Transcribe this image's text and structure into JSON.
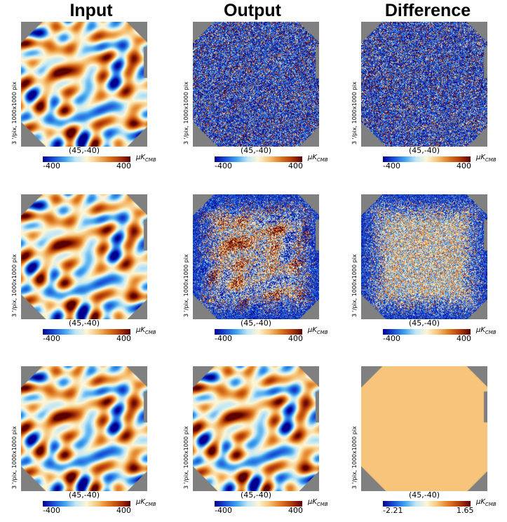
{
  "columns": [
    "Input",
    "Output",
    "Difference"
  ],
  "projection_label": "3 '/pix,   1000x1000 pix",
  "center_label": "(45,-40)",
  "unit": {
    "base": "μK",
    "sub": "CMB"
  },
  "colormap": [
    "#00008f",
    "#1a4fd6",
    "#3fa3ee",
    "#bfe7f7",
    "#fdf6d6",
    "#f6c276",
    "#e07b20",
    "#b23b0c",
    "#5a0000"
  ],
  "masked_color": "#808080",
  "panels": [
    {
      "row": 0,
      "col": 0,
      "texture": "smooth",
      "cmin": "-400",
      "cmax": "400"
    },
    {
      "row": 0,
      "col": 1,
      "texture": "noisy",
      "cmin": "-400",
      "cmax": "400"
    },
    {
      "row": 0,
      "col": 2,
      "texture": "noisy",
      "cmin": "-400",
      "cmax": "400"
    },
    {
      "row": 1,
      "col": 0,
      "texture": "smooth",
      "cmin": "-400",
      "cmax": "400"
    },
    {
      "row": 1,
      "col": 1,
      "texture": "mixed",
      "cmin": "-400",
      "cmax": "400"
    },
    {
      "row": 1,
      "col": 2,
      "texture": "noisy-light",
      "cmin": "-400",
      "cmax": "400"
    },
    {
      "row": 2,
      "col": 0,
      "texture": "smooth",
      "cmin": "-400",
      "cmax": "400"
    },
    {
      "row": 2,
      "col": 1,
      "texture": "smooth",
      "cmin": "-400",
      "cmax": "400"
    },
    {
      "row": 2,
      "col": 2,
      "texture": "flat",
      "cmin": "-2.21",
      "cmax": "1.65"
    }
  ]
}
